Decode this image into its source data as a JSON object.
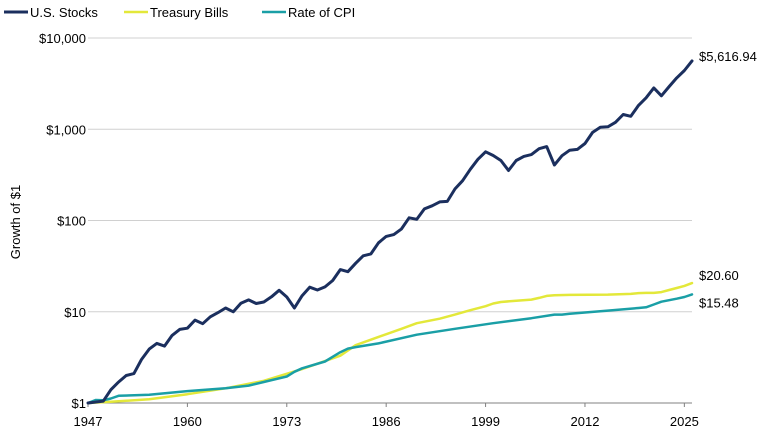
{
  "chart_data": {
    "type": "line",
    "title": "",
    "xlabel": "",
    "ylabel": "Growth of $1",
    "yscale": "log",
    "ylim": [
      1,
      10000
    ],
    "xlim": [
      1947,
      2026
    ],
    "y_ticks": [
      1,
      10,
      100,
      1000,
      10000
    ],
    "y_tick_labels": [
      "$1",
      "$10",
      "$100",
      "$1,000",
      "$10,000"
    ],
    "x_ticks": [
      1947,
      1960,
      1973,
      1986,
      1999,
      2012,
      2025
    ],
    "x_tick_labels": [
      "1947",
      "1960",
      "1973",
      "1986",
      "1999",
      "2012",
      "2025"
    ],
    "grid": "horizontal",
    "legend": "top-left",
    "series": [
      {
        "name": "U.S. Stocks",
        "color": "#1b2f5e",
        "end_label": "$5,616.94",
        "points": [
          [
            1947,
            1.0
          ],
          [
            1949,
            1.05
          ],
          [
            1950,
            1.4
          ],
          [
            1951,
            1.7
          ],
          [
            1952,
            2.0
          ],
          [
            1953,
            2.1
          ],
          [
            1954,
            3.0
          ],
          [
            1955,
            3.9
          ],
          [
            1956,
            4.5
          ],
          [
            1957,
            4.2
          ],
          [
            1958,
            5.5
          ],
          [
            1959,
            6.4
          ],
          [
            1960,
            6.6
          ],
          [
            1961,
            8.1
          ],
          [
            1962,
            7.4
          ],
          [
            1963,
            8.8
          ],
          [
            1964,
            9.8
          ],
          [
            1965,
            11.0
          ],
          [
            1966,
            10.0
          ],
          [
            1967,
            12.4
          ],
          [
            1968,
            13.5
          ],
          [
            1969,
            12.3
          ],
          [
            1970,
            12.8
          ],
          [
            1971,
            14.6
          ],
          [
            1972,
            17.2
          ],
          [
            1973,
            14.5
          ],
          [
            1974,
            11.0
          ],
          [
            1975,
            15.0
          ],
          [
            1976,
            18.6
          ],
          [
            1977,
            17.3
          ],
          [
            1978,
            18.7
          ],
          [
            1979,
            22.0
          ],
          [
            1980,
            29.0
          ],
          [
            1981,
            27.5
          ],
          [
            1982,
            34.0
          ],
          [
            1983,
            41.0
          ],
          [
            1984,
            43.0
          ],
          [
            1985,
            57.0
          ],
          [
            1986,
            67.0
          ],
          [
            1987,
            70.0
          ],
          [
            1988,
            81.0
          ],
          [
            1989,
            107.0
          ],
          [
            1990,
            103.0
          ],
          [
            1991,
            134.0
          ],
          [
            1992,
            145.0
          ],
          [
            1993,
            160.0
          ],
          [
            1994,
            162.0
          ],
          [
            1995,
            222.0
          ],
          [
            1996,
            273.0
          ],
          [
            1997,
            364.0
          ],
          [
            1998,
            468.0
          ],
          [
            1999,
            566.0
          ],
          [
            2000,
            515.0
          ],
          [
            2001,
            454.0
          ],
          [
            2002,
            353.0
          ],
          [
            2003,
            455.0
          ],
          [
            2004,
            504.0
          ],
          [
            2005,
            528.0
          ],
          [
            2006,
            612.0
          ],
          [
            2007,
            645.0
          ],
          [
            2008,
            406.0
          ],
          [
            2009,
            513.0
          ],
          [
            2010,
            590.0
          ],
          [
            2011,
            602.0
          ],
          [
            2012,
            698.0
          ],
          [
            2013,
            924.0
          ],
          [
            2014,
            1050.0
          ],
          [
            2015,
            1065.0
          ],
          [
            2016,
            1193.0
          ],
          [
            2017,
            1452.0
          ],
          [
            2018,
            1388.0
          ],
          [
            2019,
            1825.0
          ],
          [
            2020,
            2210.0
          ],
          [
            2021,
            2840.0
          ],
          [
            2022,
            2325.0
          ],
          [
            2023,
            2930.0
          ],
          [
            2024,
            3650.0
          ],
          [
            2025,
            4400.0
          ],
          [
            2026,
            5616.94
          ]
        ]
      },
      {
        "name": "Treasury Bills",
        "color": "#e3e83a",
        "end_label": "$20.60",
        "points": [
          [
            1947,
            1.0
          ],
          [
            1950,
            1.03
          ],
          [
            1955,
            1.1
          ],
          [
            1960,
            1.25
          ],
          [
            1965,
            1.45
          ],
          [
            1970,
            1.75
          ],
          [
            1975,
            2.35
          ],
          [
            1980,
            3.3
          ],
          [
            1982,
            4.3
          ],
          [
            1985,
            5.3
          ],
          [
            1988,
            6.5
          ],
          [
            1990,
            7.5
          ],
          [
            1993,
            8.4
          ],
          [
            1995,
            9.3
          ],
          [
            1997,
            10.4
          ],
          [
            1999,
            11.5
          ],
          [
            2000,
            12.3
          ],
          [
            2001,
            12.8
          ],
          [
            2003,
            13.2
          ],
          [
            2005,
            13.6
          ],
          [
            2006,
            14.2
          ],
          [
            2007,
            14.9
          ],
          [
            2008,
            15.2
          ],
          [
            2010,
            15.3
          ],
          [
            2015,
            15.4
          ],
          [
            2018,
            15.7
          ],
          [
            2019,
            16.0
          ],
          [
            2020,
            16.1
          ],
          [
            2021,
            16.1
          ],
          [
            2022,
            16.4
          ],
          [
            2023,
            17.3
          ],
          [
            2024,
            18.2
          ],
          [
            2025,
            19.2
          ],
          [
            2026,
            20.6
          ]
        ]
      },
      {
        "name": "Rate of CPI",
        "color": "#1a9fa6",
        "end_label": "$15.48",
        "points": [
          [
            1947,
            1.0
          ],
          [
            1948,
            1.08
          ],
          [
            1949,
            1.07
          ],
          [
            1950,
            1.12
          ],
          [
            1951,
            1.2
          ],
          [
            1955,
            1.23
          ],
          [
            1960,
            1.35
          ],
          [
            1965,
            1.45
          ],
          [
            1968,
            1.55
          ],
          [
            1970,
            1.7
          ],
          [
            1973,
            1.95
          ],
          [
            1974,
            2.2
          ],
          [
            1975,
            2.4
          ],
          [
            1978,
            2.85
          ],
          [
            1980,
            3.6
          ],
          [
            1981,
            3.95
          ],
          [
            1982,
            4.1
          ],
          [
            1985,
            4.5
          ],
          [
            1990,
            5.6
          ],
          [
            1995,
            6.5
          ],
          [
            2000,
            7.5
          ],
          [
            2005,
            8.5
          ],
          [
            2008,
            9.3
          ],
          [
            2009,
            9.3
          ],
          [
            2010,
            9.5
          ],
          [
            2015,
            10.3
          ],
          [
            2019,
            11.0
          ],
          [
            2020,
            11.2
          ],
          [
            2021,
            12.0
          ],
          [
            2022,
            12.9
          ],
          [
            2023,
            13.4
          ],
          [
            2024,
            13.9
          ],
          [
            2025,
            14.5
          ],
          [
            2026,
            15.48
          ]
        ]
      }
    ]
  }
}
